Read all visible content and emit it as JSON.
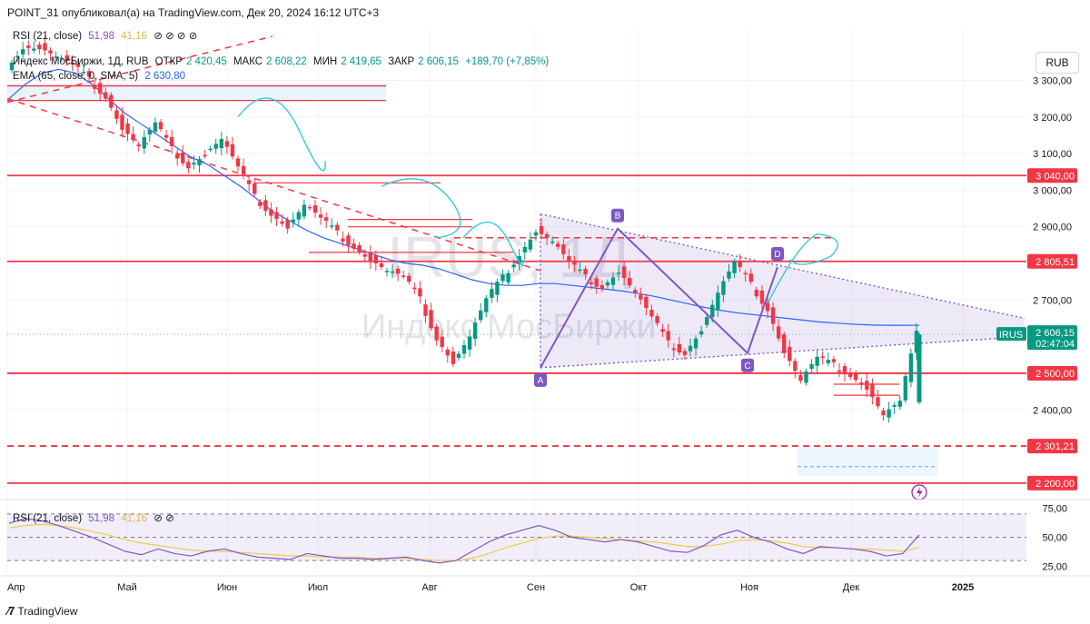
{
  "header": {
    "publisher": "POINT_31 опубликовал(а) на TradingView.com, Дек 20, 2024 16:12 UTC+3"
  },
  "legend": {
    "rsi_top": {
      "name": "RSI (21, close)",
      "v1": "51,98",
      "v2": "41,16"
    },
    "symbol": "Индекс МосБиржи, 1Д, RUB",
    "open_label": "ОТКР",
    "open": "2 420,45",
    "high_label": "МАКС",
    "high": "2 608,22",
    "low_label": "МИН",
    "low": "2 419,65",
    "close_label": "ЗАКР",
    "close": "2 606,15",
    "change": "+189,70 (+7,85%)",
    "ema": {
      "name": "EMA (65, close, 0, SMA, 5)",
      "value": "2 630,80"
    }
  },
  "currency": "RUB",
  "watermark": {
    "ticker": "IRUS, 1Д",
    "name": "Индекс МосБиржи"
  },
  "brand": "TradingView",
  "price_tag": {
    "symbol": "IRUS",
    "price": "2 606,15",
    "countdown": "02:47:04"
  },
  "pattern_labels": [
    "A",
    "B",
    "C",
    "D"
  ],
  "colors": {
    "up": "#089981",
    "down": "#f23645",
    "ema": "#2962ff",
    "pattern": "#7e57c2",
    "rsi_ma": "#f0c94c",
    "hline": "#f23645"
  },
  "chart_data": {
    "type": "candlestick",
    "symbol": "IRUS",
    "timeframe": "1Д",
    "currency": "RUB",
    "x_ticks": [
      "Апр",
      "Май",
      "Июн",
      "Июл",
      "Авг",
      "Сен",
      "Окт",
      "Ноя",
      "Дек",
      "2025"
    ],
    "y_ticks": [
      "3 300,00",
      "3 200,00",
      "3 100,00",
      "3 000,00",
      "2 900,00",
      "2 700,00",
      "2 400,00"
    ],
    "ylim": [
      2160,
      3440
    ],
    "horizontal_levels": [
      {
        "value": 3040.0,
        "label": "3 040,00",
        "style": "solid"
      },
      {
        "value": 2805.51,
        "label": "2 805,51",
        "style": "solid"
      },
      {
        "value": 2500.0,
        "label": "2 500,00",
        "style": "solid"
      },
      {
        "value": 2301.21,
        "label": "2 301,21",
        "style": "dashed"
      },
      {
        "value": 2200.0,
        "label": "2 200,00",
        "style": "solid"
      }
    ],
    "last_close": 2606.15,
    "ema": {
      "period": 65,
      "last": 2630.8
    },
    "close_path": [
      3340,
      3395,
      3390,
      3365,
      3340,
      3300,
      3260,
      3170,
      3120,
      3180,
      3110,
      3070,
      3100,
      3140,
      3060,
      2980,
      2940,
      2900,
      2960,
      2920,
      2880,
      2850,
      2810,
      2780,
      2760,
      2700,
      2600,
      2530,
      2600,
      2700,
      2760,
      2830,
      2890,
      2860,
      2800,
      2760,
      2740,
      2780,
      2720,
      2650,
      2580,
      2560,
      2620,
      2720,
      2800,
      2740,
      2680,
      2560,
      2480,
      2540,
      2520,
      2500,
      2460,
      2385,
      2420,
      2606.15
    ],
    "ema_path": [
      3250,
      3290,
      3320,
      3330,
      3320,
      3290,
      3250,
      3210,
      3180,
      3150,
      3120,
      3090,
      3070,
      3040,
      3010,
      2975,
      2940,
      2915,
      2890,
      2870,
      2855,
      2840,
      2825,
      2810,
      2800,
      2795,
      2785,
      2770,
      2755,
      2745,
      2740,
      2740,
      2745,
      2745,
      2740,
      2735,
      2730,
      2725,
      2718,
      2710,
      2700,
      2690,
      2680,
      2672,
      2665,
      2660,
      2655,
      2650,
      2645,
      2640,
      2637,
      2634,
      2632,
      2631,
      2631,
      2630.8
    ],
    "pattern_points": [
      {
        "label": "A",
        "price": 2515
      },
      {
        "label": "B",
        "price": 2895
      },
      {
        "label": "C",
        "price": 2555
      },
      {
        "label": "D",
        "price": 2790
      }
    ],
    "rsi": {
      "name": "RSI (21, close)",
      "value": 51.98,
      "ma": 41.16,
      "ylim": [
        20,
        80
      ],
      "y_ticks": [
        "75,00",
        "50,00",
        "25,00"
      ],
      "values": [
        62,
        66,
        64,
        60,
        55,
        50,
        44,
        38,
        35,
        40,
        36,
        34,
        38,
        40,
        36,
        33,
        32,
        31,
        36,
        34,
        32,
        32,
        31,
        32,
        33,
        30,
        28,
        30,
        38,
        46,
        52,
        56,
        60,
        56,
        50,
        48,
        46,
        48,
        46,
        42,
        38,
        37,
        43,
        52,
        56,
        50,
        46,
        40,
        36,
        42,
        41,
        40,
        38,
        34,
        36,
        51.98
      ],
      "ma_values": [
        58,
        60,
        61,
        60,
        58,
        55,
        52,
        48,
        45,
        43,
        41,
        39,
        38,
        38,
        37,
        36,
        35,
        34,
        34,
        33,
        33,
        33,
        32,
        32,
        32,
        31,
        30,
        30,
        32,
        36,
        41,
        45,
        49,
        51,
        51,
        50,
        49,
        48,
        47,
        46,
        44,
        42,
        42,
        44,
        47,
        48,
        47,
        45,
        42,
        41,
        41,
        40,
        40,
        39,
        38,
        41.16
      ]
    }
  }
}
